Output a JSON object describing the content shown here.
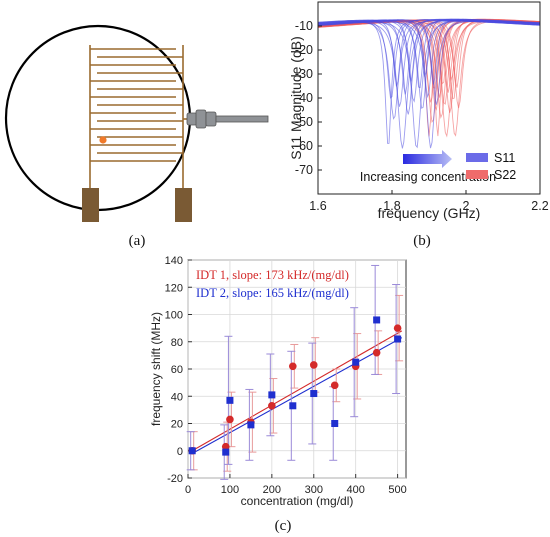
{
  "panel_a": {
    "caption": "(a)"
  },
  "colors": {
    "device_trace": "#9a6a2e",
    "pad": "#7a5a34",
    "connector": "#8f9296",
    "circle": "#000000",
    "marker": "#f07a2a",
    "blue": "#1f2fcf",
    "red": "#d42a2a",
    "blue_light": "#6b6be8",
    "red_light": "#ef6b6b"
  },
  "chart_data": [
    {
      "type": "line",
      "caption": "(b)",
      "xlabel": "frequency (GHz)",
      "ylabel": "S11 Magnitude (dB)",
      "xlim": [
        1.6,
        2.2
      ],
      "ylim": [
        -80,
        0
      ],
      "x_ticks": [
        "1.6",
        "1.8",
        "2",
        "2.2"
      ],
      "y_ticks": [
        "-10",
        "-20",
        "-30",
        "-40",
        "-50",
        "-60",
        "-70"
      ],
      "annotation": "Increasing concentration",
      "legend": {
        "position": "bottom-right",
        "entries": [
          "S11",
          "S22"
        ]
      },
      "series": [
        {
          "name": "S11",
          "color": "#4a4ae0",
          "resonance_ghz_min": 1.79,
          "resonance_ghz_max": 1.92,
          "min_db": -60
        },
        {
          "name": "S22",
          "color": "#ee5a5a",
          "resonance_ghz_min": 1.9,
          "resonance_ghz_max": 1.98,
          "min_db": -55
        }
      ]
    },
    {
      "type": "scatter",
      "caption": "(c)",
      "xlabel": "concentration (mg/dl)",
      "ylabel": "frequency shift (MHz)",
      "xlim": [
        0,
        520
      ],
      "ylim": [
        -20,
        140
      ],
      "x_ticks": [
        "0",
        "100",
        "200",
        "300",
        "400",
        "500"
      ],
      "y_ticks": [
        "-20",
        "0",
        "20",
        "40",
        "60",
        "80",
        "100",
        "120",
        "140"
      ],
      "grid": true,
      "legend": {
        "position": "top-left"
      },
      "series": [
        {
          "name": "IDT 1, slope: 173 kHz/(mg/dl)",
          "color": "#d42a2a",
          "marker": "circle",
          "x": [
            10,
            90,
            100,
            150,
            200,
            250,
            300,
            350,
            400,
            450,
            500
          ],
          "y": [
            0,
            3,
            23,
            21,
            33,
            62,
            63,
            48,
            62,
            72,
            90
          ],
          "err": [
            14,
            18,
            20,
            22,
            20,
            16,
            20,
            12,
            24,
            16,
            24
          ],
          "fit": {
            "x": [
              10,
              510
            ],
            "y": [
              0,
              88
            ]
          }
        },
        {
          "name": "IDT 2, slope: 165 kHz/(mg/dl)",
          "color": "#1f2fcf",
          "marker": "square",
          "x": [
            10,
            90,
            100,
            150,
            200,
            250,
            300,
            350,
            400,
            450,
            500
          ],
          "y": [
            0,
            -1,
            37,
            19,
            41,
            33,
            42,
            20,
            65,
            96,
            82
          ],
          "err": [
            14,
            20,
            47,
            26,
            30,
            40,
            37,
            27,
            40,
            40,
            40
          ],
          "fit": {
            "x": [
              10,
              510
            ],
            "y": [
              -2,
              83
            ]
          }
        }
      ]
    }
  ]
}
